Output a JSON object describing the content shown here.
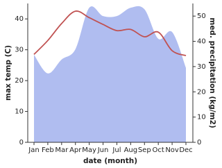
{
  "chart_data": {
    "type": "line",
    "x_label": "date (month)",
    "y_label": "max temp (C)",
    "y2_label": "med. precipitation (kg/m2)",
    "categories": [
      "Jan",
      "Feb",
      "Mar",
      "Apr",
      "May",
      "Jun",
      "Jul",
      "Aug",
      "Sep",
      "Oct",
      "Nov",
      "Dec"
    ],
    "series": [
      {
        "name": "med. precipitation",
        "type": "area",
        "axis": "y2",
        "color": "#b0bdf0",
        "values": [
          34.7,
          27.3,
          32.8,
          36.9,
          53.3,
          50,
          50,
          53.3,
          52.7,
          41,
          43.7,
          29.5
        ]
      },
      {
        "name": "max temp",
        "type": "line",
        "color": "#c05252",
        "values": [
          28.5,
          33,
          38.5,
          42.5,
          40.4,
          38.2,
          36.2,
          36.6,
          34.2,
          35.7,
          29.7,
          28.1
        ]
      }
    ],
    "ylim": [
      0,
      45
    ],
    "yticks": [
      0,
      10,
      20,
      30,
      40
    ],
    "y2lim": [
      0,
      55
    ],
    "y2ticks": [
      0,
      10,
      20,
      30,
      40,
      50
    ]
  }
}
